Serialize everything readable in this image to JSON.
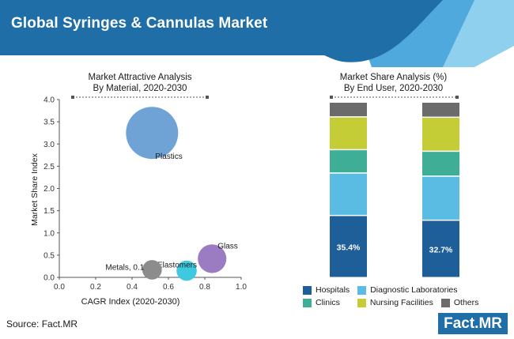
{
  "header": {
    "title": "Global Syringes & Cannulas Market"
  },
  "source": "Source: Fact.MR",
  "logo": "Fact.MR",
  "colors": {
    "banner": "#1f6ea8",
    "banner_accent_1": "#4fa9dd",
    "banner_accent_2": "#8fd0ef",
    "plastics": "#6fa3d6",
    "glass": "#9b7cc2",
    "elastomers": "#3ec9e0",
    "metals": "#8c8c8c",
    "hospitals": "#1f5f99",
    "diagnostic_laboratories": "#5bbce3",
    "clinics": "#3fae96",
    "nursing_facilities": "#c4cc36",
    "others": "#6b6b6b"
  },
  "chart_data": [
    {
      "type": "scatter",
      "title": "Market Attractive Analysis",
      "subtitle": "By Material, 2020-2030",
      "xlabel": "CAGR Index (2020-2030)",
      "ylabel": "Market Share Index",
      "xlim": [
        0,
        1.0
      ],
      "ylim": [
        0,
        4.0
      ],
      "x_ticks": [
        "0.0",
        "0.2",
        "0.4",
        "0.6",
        "0.8",
        "1.0"
      ],
      "y_ticks": [
        "0.0",
        "0.5",
        "1.0",
        "1.5",
        "2.0",
        "2.5",
        "3.0",
        "3.5",
        "4.0"
      ],
      "grid": false,
      "points": [
        {
          "label": "Plastics",
          "x": 0.51,
          "y": 3.25,
          "size": 1.0
        },
        {
          "label": "Glass",
          "x": 0.84,
          "y": 0.42,
          "size": 0.3
        },
        {
          "label": "Elastomers",
          "x": 0.7,
          "y": 0.15,
          "size": 0.15
        },
        {
          "label": "Metals, 0.1",
          "x": 0.51,
          "y": 0.17,
          "size": 0.14
        }
      ]
    },
    {
      "type": "bar",
      "stacked": true,
      "normalized": true,
      "title": "Market Share Analysis (%)",
      "subtitle": "By End User, 2020-2030",
      "categories": [
        "",
        ""
      ],
      "series": [
        {
          "name": "Hospitals",
          "values": [
            35.4,
            32.7
          ],
          "labels": [
            "35.4%",
            "32.7%"
          ]
        },
        {
          "name": "Diagnostic Laboratories",
          "values": [
            24.2,
            25.1
          ]
        },
        {
          "name": "Clinics",
          "values": [
            13.3,
            14.2
          ]
        },
        {
          "name": "Nursing Facilities",
          "values": [
            18.7,
            19.4
          ]
        },
        {
          "name": "Others",
          "values": [
            8.4,
            8.6
          ]
        }
      ],
      "legend_position": "bottom"
    }
  ]
}
